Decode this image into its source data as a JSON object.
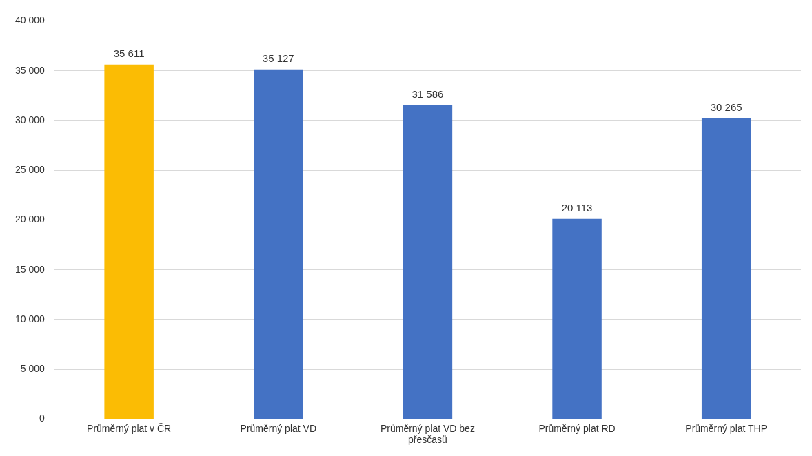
{
  "chart_data": {
    "type": "bar",
    "categories": [
      "Průměrný plat v ČR",
      "Průměrný plat VD",
      "Průměrný plat VD bez přesčasů",
      "Průměrný plat RD",
      "Průměrný plat THP"
    ],
    "values": [
      35611,
      35127,
      31586,
      20113,
      30265
    ],
    "colors": [
      "#fbbc04",
      "#4472c4",
      "#4472c4",
      "#4472c4",
      "#4472c4"
    ],
    "ylim": [
      0,
      40000
    ],
    "yticks": [
      {
        "value": 0,
        "label": "0"
      },
      {
        "value": 5000,
        "label": "5 000"
      },
      {
        "value": 10000,
        "label": "10 000"
      },
      {
        "value": 15000,
        "label": "15 000"
      },
      {
        "value": 20000,
        "label": "20 000"
      },
      {
        "value": 25000,
        "label": "25 000"
      },
      {
        "value": 30000,
        "label": "30 000"
      },
      {
        "value": 35000,
        "label": "35 000"
      },
      {
        "value": 40000,
        "label": "40 000"
      }
    ],
    "grid": "y",
    "data_labels": true,
    "legend": false
  }
}
